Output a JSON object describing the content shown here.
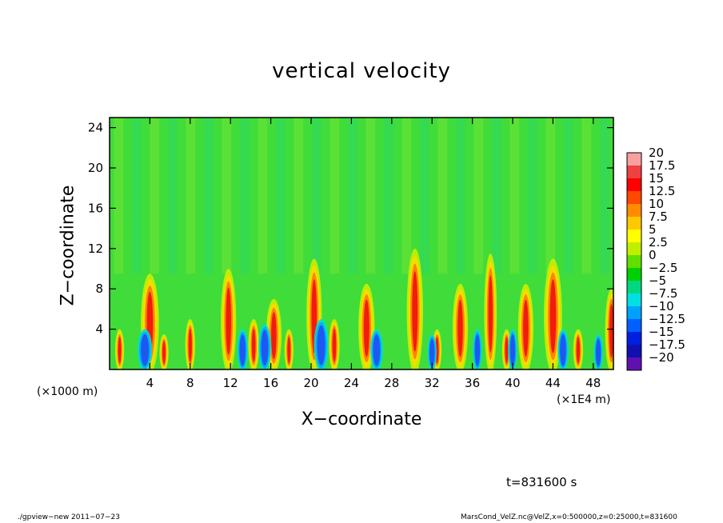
{
  "chart_data": {
    "type": "heatmap",
    "title": "vertical velocity",
    "xlabel": "X−coordinate",
    "ylabel": "Z−coordinate",
    "x_unit_left": "(×1000 m)",
    "x_unit_right": "(×1E4 m)",
    "xlim": [
      0,
      50
    ],
    "ylim": [
      0,
      25
    ],
    "x_ticks": [
      "4",
      "8",
      "12",
      "16",
      "20",
      "24",
      "28",
      "32",
      "36",
      "40",
      "44",
      "48"
    ],
    "y_ticks": [
      "4",
      "8",
      "12",
      "16",
      "20",
      "24"
    ],
    "x_tick_values": [
      4,
      8,
      12,
      16,
      20,
      24,
      28,
      32,
      36,
      40,
      44,
      48
    ],
    "y_tick_values": [
      4,
      8,
      12,
      16,
      20,
      24
    ],
    "colorbar": {
      "labels": [
        "20",
        "17.5",
        "15",
        "12.5",
        "10",
        "7.5",
        "5",
        "2.5",
        "0",
        "−2.5",
        "−5",
        "−7.5",
        "−10",
        "−12.5",
        "−15",
        "−17.5",
        "−20"
      ],
      "colors": [
        "#f8a0a0",
        "#f04040",
        "#ff0000",
        "#ff4800",
        "#ff8c00",
        "#ffc800",
        "#ffff00",
        "#c0f000",
        "#60e000",
        "#00d000",
        "#00d880",
        "#00e0e0",
        "#00a0ff",
        "#0060ff",
        "#0020e0",
        "#1010b0",
        "#6010b0"
      ]
    },
    "updrafts": [
      {
        "x": 1.0,
        "h": 4.0,
        "s": 0.5
      },
      {
        "x": 4.0,
        "h": 9.5,
        "s": 1.0
      },
      {
        "x": 5.4,
        "h": 3.5,
        "s": 0.5
      },
      {
        "x": 8.0,
        "h": 5.0,
        "s": 0.55
      },
      {
        "x": 11.8,
        "h": 10.0,
        "s": 0.85
      },
      {
        "x": 14.3,
        "h": 5.0,
        "s": 0.6
      },
      {
        "x": 16.3,
        "h": 7.0,
        "s": 0.85
      },
      {
        "x": 17.8,
        "h": 4.0,
        "s": 0.5
      },
      {
        "x": 20.3,
        "h": 11.0,
        "s": 0.85
      },
      {
        "x": 22.3,
        "h": 5.0,
        "s": 0.6
      },
      {
        "x": 25.5,
        "h": 8.5,
        "s": 0.9
      },
      {
        "x": 30.3,
        "h": 12.0,
        "s": 0.9
      },
      {
        "x": 32.5,
        "h": 4.0,
        "s": 0.5
      },
      {
        "x": 34.8,
        "h": 8.5,
        "s": 0.85
      },
      {
        "x": 37.8,
        "h": 11.5,
        "s": 0.7
      },
      {
        "x": 39.4,
        "h": 4.0,
        "s": 0.5
      },
      {
        "x": 41.3,
        "h": 8.5,
        "s": 0.85
      },
      {
        "x": 44.0,
        "h": 11.0,
        "s": 1.0
      },
      {
        "x": 46.5,
        "h": 4.0,
        "s": 0.55
      },
      {
        "x": 49.8,
        "h": 8.0,
        "s": 0.7
      }
    ],
    "downdrafts": [
      {
        "x": 3.5,
        "h": 4.0,
        "s": 0.8
      },
      {
        "x": 13.2,
        "h": 4.0,
        "s": 0.6
      },
      {
        "x": 15.4,
        "h": 4.5,
        "s": 0.7
      },
      {
        "x": 21.0,
        "h": 5.0,
        "s": 0.8
      },
      {
        "x": 26.5,
        "h": 4.0,
        "s": 0.7
      },
      {
        "x": 32.0,
        "h": 3.5,
        "s": 0.5
      },
      {
        "x": 36.5,
        "h": 4.0,
        "s": 0.5
      },
      {
        "x": 40.0,
        "h": 4.0,
        "s": 0.5
      },
      {
        "x": 45.0,
        "h": 4.0,
        "s": 0.6
      },
      {
        "x": 48.5,
        "h": 3.5,
        "s": 0.5
      }
    ]
  },
  "annotations": {
    "time": "t=831600 s",
    "footer_left": "./gpview−new   2011−07−23",
    "footer_right": "MarsCond_VelZ.nc@VelZ,x=0:500000,z=0:25000,t=831600"
  }
}
